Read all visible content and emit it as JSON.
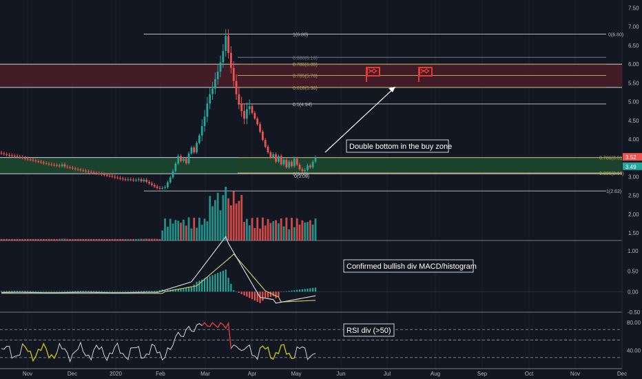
{
  "chart_data": {
    "type": "candlestick",
    "panes": {
      "price": {
        "ylim": [
          1.3,
          7.6
        ],
        "ticks": [
          "7.50",
          "7.00",
          "6.50",
          "6.00",
          "5.50",
          "5.00",
          "4.50",
          "4.00",
          "3.50",
          "3.00",
          "2.50",
          "2.00",
          "1.50"
        ],
        "last_price_label": "3.52",
        "last_price_color": "#ef5350",
        "ref_price_label": "3.49",
        "ref_price_color": "#26a69a"
      },
      "macd": {
        "ylim": [
          -0.5,
          1.2
        ],
        "ticks": [
          "1.00",
          "0.50",
          "0.00",
          "-0.50"
        ]
      },
      "rsi": {
        "ylim": [
          18,
          92
        ],
        "ticks": [
          "80.00",
          "40.00"
        ]
      }
    },
    "x_labels": [
      "Nov",
      "Dec",
      "2020",
      "Feb",
      "Mar",
      "Apr",
      "May",
      "Jun",
      "Jul",
      "Aug",
      "Sep",
      "Oct",
      "Nov",
      "Dec"
    ],
    "fib_levels": [
      {
        "label": "1(6.80)",
        "value": 6.8,
        "color": "#b2b5be"
      },
      {
        "label": "0.886(6.18)",
        "value": 6.18,
        "color": "#787b86"
      },
      {
        "label": "0.786(6.00)",
        "value": 6.0,
        "color": "#b5a15c"
      },
      {
        "label": "0.705(5.70)",
        "value": 5.7,
        "color": "#b5a15c"
      },
      {
        "label": "0.618(5.38)",
        "value": 5.38,
        "color": "#b5a15c"
      },
      {
        "label": "0.5(4.94)",
        "value": 4.94,
        "color": "#b2b5be"
      },
      {
        "label": "0.786(3.51)",
        "value": 3.51,
        "color": "#b5a15c"
      },
      {
        "label": "0(3.08)",
        "value": 3.08,
        "color": "#b2b5be"
      },
      {
        "label": "0.886(3.10)",
        "value": 3.1,
        "color": "#b5a15c"
      },
      {
        "label": "1(2.62)",
        "value": 2.62,
        "color": "#b2b5be"
      }
    ],
    "right_label": "0(6.80)",
    "zones": [
      {
        "name": "sell-zone",
        "from": 5.38,
        "to": 6.0,
        "color": "#4a1c26"
      },
      {
        "name": "buy-zone",
        "from": 3.08,
        "to": 3.51,
        "color": "#1d4a2e"
      }
    ],
    "annotations": {
      "price": "Double bottom in the buy zone",
      "macd": "Confirmed bullish div MACD/histogram",
      "rsi": "RSI div (>50)"
    },
    "rsi_levels": [
      70,
      55,
      30
    ],
    "colors": {
      "up": "#26a69a",
      "down": "#ef5350",
      "macd_line": "#d1d4dc",
      "signal_line": "#c9c26a",
      "rsi_line": "#d1d4dc",
      "rsi_highlight": "#c9c20b",
      "rsi_overbought": "#e53935"
    },
    "price_series": [
      3.62,
      3.6,
      3.58,
      3.57,
      3.56,
      3.55,
      3.53,
      3.52,
      3.5,
      3.48,
      3.46,
      3.45,
      3.43,
      3.41,
      3.4,
      3.38,
      3.36,
      3.35,
      3.33,
      3.32,
      3.31,
      3.3,
      3.28,
      3.33,
      3.27,
      3.25,
      3.24,
      3.22,
      3.2,
      3.19,
      3.17,
      3.16,
      3.14,
      3.13,
      3.11,
      3.1,
      3.09,
      3.08,
      3.06,
      3.05,
      3.03,
      3.02,
      3.0,
      2.98,
      2.97,
      2.95,
      2.93,
      2.92,
      2.93,
      2.92,
      2.9,
      2.91,
      2.93,
      2.88,
      2.92,
      2.86,
      2.82,
      2.78,
      2.74,
      2.7,
      2.69,
      2.7,
      2.72,
      2.85,
      2.98,
      3.15,
      3.35,
      3.55,
      3.42,
      3.48,
      3.36,
      3.62,
      3.78,
      3.65,
      3.9,
      4.1,
      4.35,
      4.6,
      4.95,
      5.2,
      5.35,
      5.6,
      5.8,
      6.05,
      6.35,
      6.75,
      6.3,
      5.9,
      5.55,
      5.2,
      4.95,
      4.75,
      4.55,
      4.8,
      4.88,
      4.7,
      4.55,
      4.4,
      4.2,
      3.98,
      3.8,
      3.65,
      3.52,
      3.6,
      3.4,
      3.55,
      3.33,
      3.45,
      3.25,
      3.4,
      3.28,
      3.48,
      3.32,
      3.2,
      3.15,
      3.18,
      3.3,
      3.25,
      3.4,
      3.52
    ]
  }
}
